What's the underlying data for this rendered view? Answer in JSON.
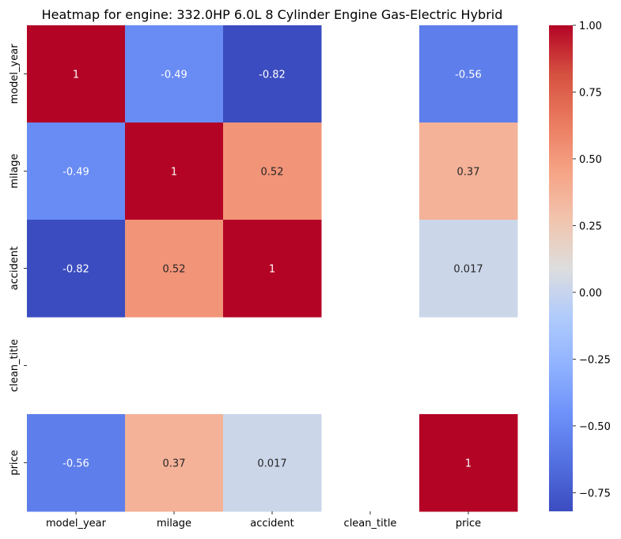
{
  "chart_data": {
    "type": "heatmap",
    "title": "Heatmap for engine: 332.0HP 6.0L 8 Cylinder Engine Gas-Electric Hybrid",
    "xlabel": "",
    "ylabel": "",
    "x_categories": [
      "model_year",
      "milage",
      "accident",
      "clean_title",
      "price"
    ],
    "y_categories": [
      "model_year",
      "milage",
      "accident",
      "clean_title",
      "price"
    ],
    "values": [
      [
        1,
        -0.49,
        -0.82,
        null,
        -0.56
      ],
      [
        -0.49,
        1,
        0.52,
        null,
        0.37
      ],
      [
        -0.82,
        0.52,
        1,
        null,
        0.017
      ],
      [
        null,
        null,
        null,
        null,
        null
      ],
      [
        -0.56,
        0.37,
        0.017,
        null,
        1
      ]
    ],
    "annotations": [
      [
        "1",
        "-0.49",
        "-0.82",
        "",
        "-0.56"
      ],
      [
        "-0.49",
        "1",
        "0.52",
        "",
        "0.37"
      ],
      [
        "-0.82",
        "0.52",
        "1",
        "",
        "0.017"
      ],
      [
        "",
        "",
        "",
        "",
        ""
      ],
      [
        "-0.56",
        "0.37",
        "0.017",
        "",
        "1"
      ]
    ],
    "colormap": "coolwarm",
    "color_range": [
      -0.82,
      1.0
    ],
    "colorbar_ticks": [
      1.0,
      0.75,
      0.5,
      0.25,
      0.0,
      -0.25,
      -0.5,
      -0.75
    ],
    "colorbar_tick_labels": [
      "1.00",
      "0.75",
      "0.50",
      "0.25",
      "0.00",
      "−0.25",
      "−0.50",
      "−0.75"
    ],
    "grid": false
  }
}
